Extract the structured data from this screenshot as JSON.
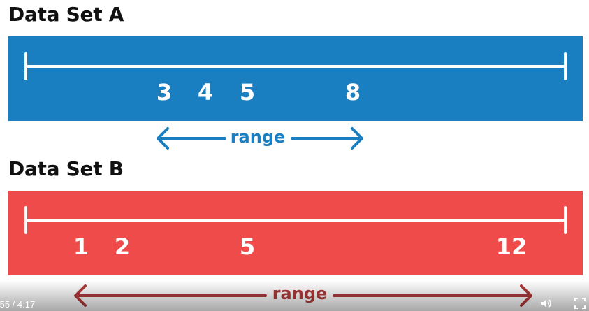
{
  "data_set_a": {
    "title": "Data Set A",
    "values": [
      "3",
      "4",
      "5",
      "8"
    ],
    "range_label": "range",
    "band_color": "#1a7fc1"
  },
  "data_set_b": {
    "title": "Data Set B",
    "values": [
      "1",
      "2",
      "5",
      "12"
    ],
    "range_label": "range",
    "band_color": "#ef4b4b"
  },
  "player": {
    "time": ":55 / 4:17",
    "volume_icon": "volume-icon",
    "fullscreen_icon": "fullscreen-icon"
  }
}
